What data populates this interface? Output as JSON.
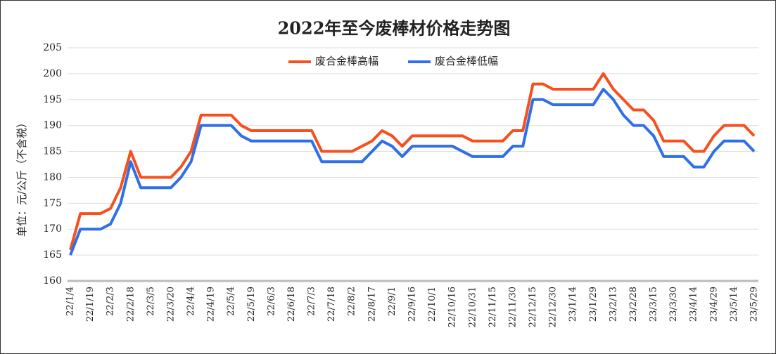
{
  "chart_data": {
    "type": "line",
    "title": "2022年至今废棒材价格走势图",
    "y_label": "单位：元/公斤（不含税）",
    "categories": [
      "22/1/4",
      null,
      "22/1/19",
      null,
      "22/2/3",
      null,
      "22/2/18",
      null,
      "22/3/5",
      null,
      "22/3/20",
      null,
      "22/4/4",
      null,
      "22/4/19",
      null,
      "22/5/4",
      null,
      "22/5/19",
      null,
      "22/6/3",
      null,
      "22/6/18",
      null,
      "22/7/3",
      null,
      "22/7/18",
      null,
      "22/8/2",
      null,
      "22/8/17",
      null,
      "22/9/1",
      null,
      "22/9/16",
      null,
      "22/10/1",
      null,
      "22/10/16",
      null,
      "22/10/31",
      null,
      "22/11/15",
      null,
      "22/11/30",
      null,
      "22/12/15",
      null,
      "22/12/30",
      null,
      "23/1/14",
      null,
      "23/1/29",
      null,
      "23/2/13",
      null,
      "23/2/28",
      null,
      "23/3/15",
      null,
      "23/3/30",
      null,
      "23/4/14",
      null,
      "23/4/29",
      null,
      "23/5/14",
      null,
      "23/5/29"
    ],
    "series": [
      {
        "name": "废合金棒高幅",
        "color": "#f4511e",
        "values": [
          166,
          173,
          173,
          173,
          174,
          178,
          185,
          180,
          180,
          180,
          180,
          182,
          185,
          192,
          192,
          192,
          192,
          190,
          189,
          189,
          189,
          189,
          189,
          189,
          189,
          185,
          185,
          185,
          185,
          186,
          187,
          189,
          188,
          186,
          188,
          188,
          188,
          188,
          188,
          188,
          187,
          187,
          187,
          187,
          189,
          189,
          198,
          198,
          197,
          197,
          197,
          197,
          197,
          200,
          197,
          195,
          193,
          193,
          191,
          187,
          187,
          187,
          185,
          185,
          188,
          190,
          190,
          190,
          188
        ]
      },
      {
        "name": "废合金棒低幅",
        "color": "#2f6fe8",
        "values": [
          165,
          170,
          170,
          170,
          171,
          175,
          183,
          178,
          178,
          178,
          178,
          180,
          183,
          190,
          190,
          190,
          190,
          188,
          187,
          187,
          187,
          187,
          187,
          187,
          187,
          183,
          183,
          183,
          183,
          183,
          185,
          187,
          186,
          184,
          186,
          186,
          186,
          186,
          186,
          185,
          184,
          184,
          184,
          184,
          186,
          186,
          195,
          195,
          194,
          194,
          194,
          194,
          194,
          197,
          195,
          192,
          190,
          190,
          188,
          184,
          184,
          184,
          182,
          182,
          185,
          187,
          187,
          187,
          185
        ]
      }
    ],
    "ylim": [
      160,
      205
    ],
    "yticks": [
      160,
      165,
      170,
      175,
      180,
      185,
      190,
      195,
      200,
      205
    ],
    "grid": true,
    "legend": "top"
  }
}
